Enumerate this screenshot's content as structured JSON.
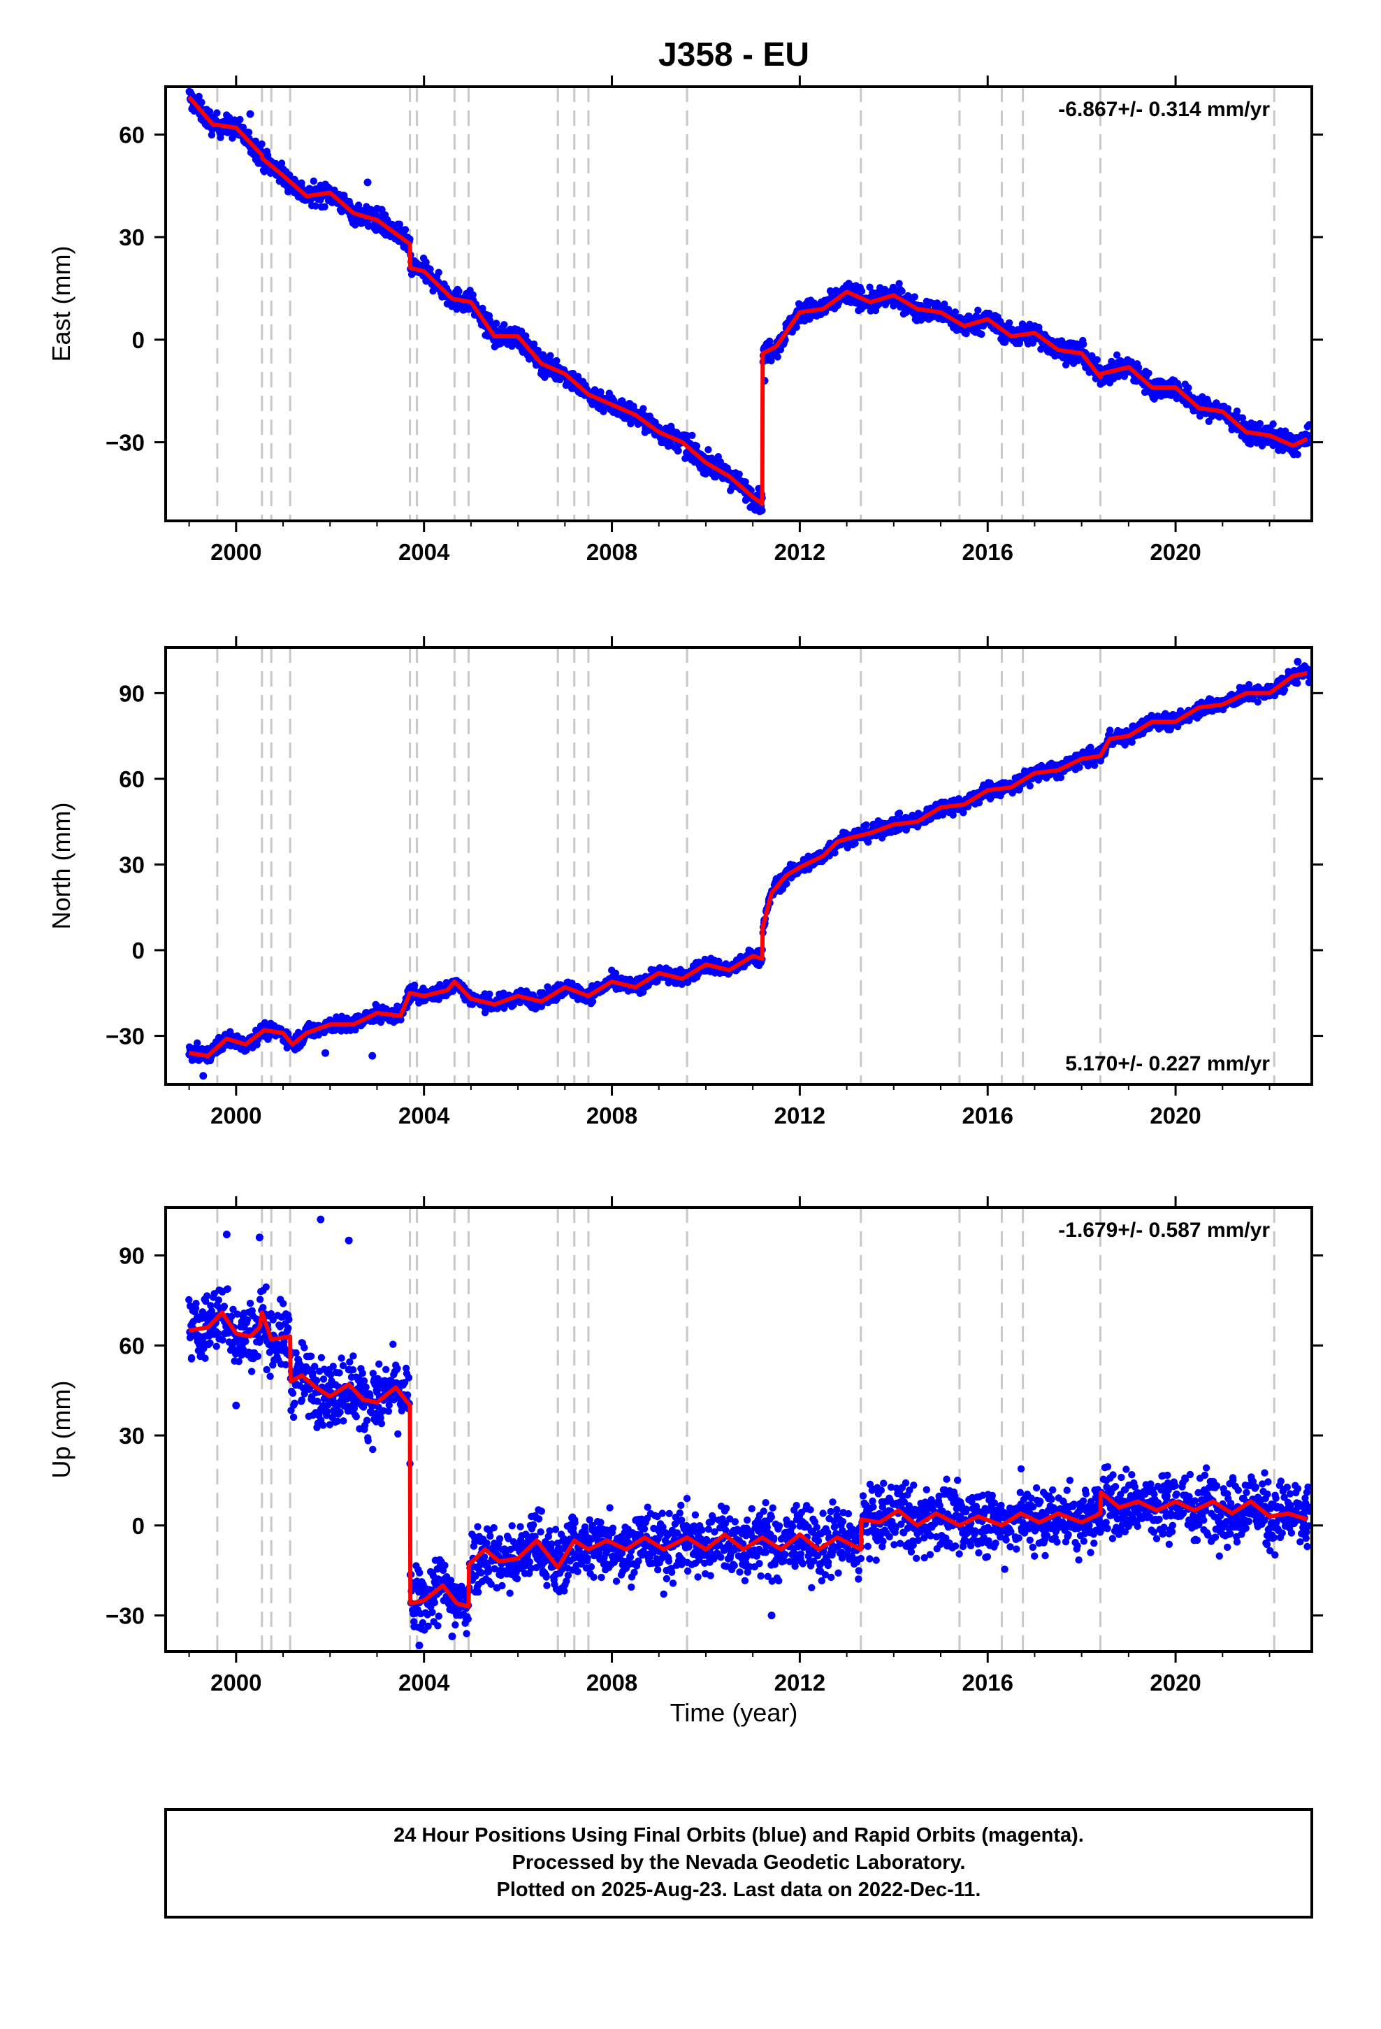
{
  "title": "J358 - EU",
  "xlabel": "Time (year)",
  "caption": [
    "24 Hour Positions Using Final Orbits (blue) and Rapid Orbits (magenta).",
    "Processed by the Nevada Geodetic Laboratory.",
    "Plotted on 2025-Aug-23. Last data on 2022-Dec-11."
  ],
  "colors": {
    "observations": "#0000ff",
    "model": "#ff0000",
    "events": "#c8c8c8",
    "frame": "#000000"
  },
  "chart_data": [
    {
      "type": "scatter",
      "component": "East",
      "ylabel": "East (mm)",
      "rate": "-6.867+/- 0.314 mm/yr",
      "rate_position": "top-right",
      "xlim": [
        1998.5,
        2022.9
      ],
      "ylim": [
        -53,
        74
      ],
      "xticks": [
        2000,
        2004,
        2008,
        2012,
        2016,
        2020
      ],
      "yticks": [
        -30,
        0,
        30,
        60
      ],
      "events": [
        1999.6,
        2000.55,
        2000.75,
        2001.15,
        2003.7,
        2003.85,
        2004.65,
        2004.95,
        2006.85,
        2007.2,
        2007.5,
        2009.6,
        2013.3,
        2015.4,
        2016.3,
        2016.75,
        2018.4,
        2022.1
      ],
      "model": [
        [
          1999.0,
          71
        ],
        [
          1999.5,
          63
        ],
        [
          2000.0,
          62
        ],
        [
          2000.55,
          54
        ],
        [
          2000.56,
          53
        ],
        [
          2001.0,
          48
        ],
        [
          2001.5,
          42
        ],
        [
          2002.0,
          43
        ],
        [
          2002.5,
          37
        ],
        [
          2003.0,
          35
        ],
        [
          2003.5,
          30
        ],
        [
          2003.7,
          28
        ],
        [
          2003.71,
          21
        ],
        [
          2004.0,
          20
        ],
        [
          2004.6,
          12
        ],
        [
          2005.0,
          11
        ],
        [
          2005.5,
          1
        ],
        [
          2006.0,
          1
        ],
        [
          2006.5,
          -7
        ],
        [
          2007.0,
          -10
        ],
        [
          2007.5,
          -16
        ],
        [
          2008.0,
          -19
        ],
        [
          2008.5,
          -22
        ],
        [
          2009.0,
          -27
        ],
        [
          2009.5,
          -30
        ],
        [
          2010.0,
          -36
        ],
        [
          2010.5,
          -40
        ],
        [
          2011.0,
          -46
        ],
        [
          2011.2,
          -48
        ],
        [
          2011.21,
          -4
        ],
        [
          2011.5,
          -2
        ],
        [
          2012.0,
          8
        ],
        [
          2012.5,
          9
        ],
        [
          2013.0,
          14
        ],
        [
          2013.5,
          11
        ],
        [
          2014.0,
          13
        ],
        [
          2014.5,
          9
        ],
        [
          2015.0,
          8
        ],
        [
          2015.5,
          4
        ],
        [
          2016.0,
          6
        ],
        [
          2016.5,
          1
        ],
        [
          2017.0,
          2
        ],
        [
          2017.5,
          -3
        ],
        [
          2018.0,
          -4
        ],
        [
          2018.4,
          -11
        ],
        [
          2018.41,
          -10
        ],
        [
          2019.0,
          -8
        ],
        [
          2019.5,
          -14
        ],
        [
          2020.0,
          -14
        ],
        [
          2020.5,
          -20
        ],
        [
          2021.0,
          -21
        ],
        [
          2021.5,
          -27
        ],
        [
          2022.0,
          -28
        ],
        [
          2022.5,
          -31
        ],
        [
          2022.8,
          -29
        ]
      ],
      "observations": {
        "label": "Final Orbits (blue)",
        "start": 1999.0,
        "end": 2022.85,
        "scatter_mm": 2.2,
        "outliers": [
          [
            2002.8,
            46
          ],
          [
            2003.1,
            38
          ],
          [
            2000.3,
            66
          ],
          [
            2011.25,
            -12
          ]
        ]
      }
    },
    {
      "type": "scatter",
      "component": "North",
      "ylabel": "North (mm)",
      "rate": "5.170+/- 0.227 mm/yr",
      "rate_position": "bottom-right",
      "xlim": [
        1998.5,
        2022.9
      ],
      "ylim": [
        -47,
        106
      ],
      "xticks": [
        2000,
        2004,
        2008,
        2012,
        2016,
        2020
      ],
      "yticks": [
        -30,
        0,
        30,
        60,
        90
      ],
      "events": [
        1999.6,
        2000.55,
        2000.75,
        2001.15,
        2003.7,
        2003.85,
        2004.65,
        2004.95,
        2006.85,
        2007.2,
        2007.5,
        2009.6,
        2013.3,
        2015.4,
        2016.3,
        2016.75,
        2018.4,
        2022.1
      ],
      "model": [
        [
          1999.0,
          -36
        ],
        [
          1999.4,
          -37
        ],
        [
          1999.8,
          -31
        ],
        [
          2000.2,
          -33
        ],
        [
          2000.6,
          -28
        ],
        [
          2001.0,
          -29
        ],
        [
          2001.2,
          -33
        ],
        [
          2001.5,
          -29
        ],
        [
          2002.0,
          -26
        ],
        [
          2002.5,
          -26
        ],
        [
          2003.0,
          -22
        ],
        [
          2003.5,
          -23
        ],
        [
          2003.7,
          -15
        ],
        [
          2004.0,
          -16
        ],
        [
          2004.5,
          -14
        ],
        [
          2004.65,
          -11
        ],
        [
          2005.0,
          -17
        ],
        [
          2005.5,
          -19
        ],
        [
          2006.0,
          -16
        ],
        [
          2006.5,
          -18
        ],
        [
          2007.0,
          -13
        ],
        [
          2007.5,
          -16
        ],
        [
          2008.0,
          -11
        ],
        [
          2008.5,
          -13
        ],
        [
          2009.0,
          -8
        ],
        [
          2009.5,
          -10
        ],
        [
          2010.0,
          -5
        ],
        [
          2010.5,
          -7
        ],
        [
          2011.0,
          -2
        ],
        [
          2011.2,
          -3
        ],
        [
          2011.21,
          8
        ],
        [
          2011.4,
          20
        ],
        [
          2011.7,
          26
        ],
        [
          2012.0,
          29
        ],
        [
          2012.5,
          33
        ],
        [
          2012.8,
          38
        ],
        [
          2013.0,
          39
        ],
        [
          2013.5,
          41
        ],
        [
          2014.0,
          44
        ],
        [
          2014.5,
          45
        ],
        [
          2015.0,
          50
        ],
        [
          2015.5,
          51
        ],
        [
          2016.0,
          56
        ],
        [
          2016.5,
          57
        ],
        [
          2017.0,
          62
        ],
        [
          2017.5,
          63
        ],
        [
          2018.0,
          67
        ],
        [
          2018.4,
          68
        ],
        [
          2018.6,
          74
        ],
        [
          2019.0,
          75
        ],
        [
          2019.5,
          80
        ],
        [
          2020.0,
          80
        ],
        [
          2020.5,
          85
        ],
        [
          2021.0,
          86
        ],
        [
          2021.5,
          90
        ],
        [
          2022.0,
          90
        ],
        [
          2022.5,
          96
        ],
        [
          2022.8,
          97
        ]
      ],
      "observations": {
        "label": "Final Orbits (blue)",
        "start": 1999.0,
        "end": 2022.85,
        "scatter_mm": 1.9,
        "outliers": [
          [
            1999.3,
            -44
          ],
          [
            2002.9,
            -37
          ],
          [
            2001.9,
            -36
          ],
          [
            2022.6,
            101
          ]
        ]
      }
    },
    {
      "type": "scatter",
      "component": "Up",
      "ylabel": "Up (mm)",
      "rate": "-1.679+/- 0.587 mm/yr",
      "rate_position": "top-right",
      "xlim": [
        1998.5,
        2022.9
      ],
      "ylim": [
        -42,
        106
      ],
      "xticks": [
        2000,
        2004,
        2008,
        2012,
        2016,
        2020
      ],
      "yticks": [
        -30,
        0,
        30,
        60,
        90
      ],
      "events": [
        1999.6,
        2000.55,
        2000.75,
        2001.15,
        2003.7,
        2003.85,
        2004.65,
        2004.95,
        2006.85,
        2007.2,
        2007.5,
        2009.6,
        2013.3,
        2015.4,
        2016.3,
        2016.75,
        2018.4,
        2022.1
      ],
      "model": [
        [
          1999.0,
          65
        ],
        [
          1999.4,
          66
        ],
        [
          1999.7,
          71
        ],
        [
          2000.0,
          64
        ],
        [
          2000.3,
          63
        ],
        [
          2000.5,
          66
        ],
        [
          2000.55,
          71
        ],
        [
          2000.75,
          62
        ],
        [
          2001.15,
          63
        ],
        [
          2001.16,
          48
        ],
        [
          2001.4,
          50
        ],
        [
          2001.7,
          46
        ],
        [
          2002.0,
          43
        ],
        [
          2002.4,
          47
        ],
        [
          2002.7,
          42
        ],
        [
          2003.0,
          41
        ],
        [
          2003.4,
          46
        ],
        [
          2003.7,
          40
        ],
        [
          2003.71,
          -26
        ],
        [
          2004.0,
          -25
        ],
        [
          2004.4,
          -20
        ],
        [
          2004.7,
          -26
        ],
        [
          2004.95,
          -27
        ],
        [
          2004.96,
          -13
        ],
        [
          2005.3,
          -8
        ],
        [
          2005.6,
          -12
        ],
        [
          2006.0,
          -11
        ],
        [
          2006.4,
          -5
        ],
        [
          2006.85,
          -14
        ],
        [
          2007.2,
          -5
        ],
        [
          2007.5,
          -8
        ],
        [
          2007.9,
          -5
        ],
        [
          2008.3,
          -8
        ],
        [
          2008.7,
          -4
        ],
        [
          2009.1,
          -8
        ],
        [
          2009.6,
          -4
        ],
        [
          2010.0,
          -8
        ],
        [
          2010.4,
          -3
        ],
        [
          2010.8,
          -8
        ],
        [
          2011.2,
          -4
        ],
        [
          2011.6,
          -8
        ],
        [
          2012.0,
          -3
        ],
        [
          2012.4,
          -8
        ],
        [
          2012.8,
          -4
        ],
        [
          2013.3,
          -8
        ],
        [
          2013.31,
          2
        ],
        [
          2013.7,
          1
        ],
        [
          2014.1,
          5
        ],
        [
          2014.5,
          0
        ],
        [
          2014.9,
          4
        ],
        [
          2015.4,
          0
        ],
        [
          2015.8,
          3
        ],
        [
          2016.3,
          0
        ],
        [
          2016.7,
          4
        ],
        [
          2017.1,
          1
        ],
        [
          2017.5,
          4
        ],
        [
          2018.0,
          1
        ],
        [
          2018.4,
          4
        ],
        [
          2018.41,
          11
        ],
        [
          2018.8,
          6
        ],
        [
          2019.2,
          8
        ],
        [
          2019.6,
          5
        ],
        [
          2020.0,
          8
        ],
        [
          2020.4,
          5
        ],
        [
          2020.8,
          8
        ],
        [
          2021.2,
          4
        ],
        [
          2021.6,
          8
        ],
        [
          2022.0,
          3
        ],
        [
          2022.4,
          4
        ],
        [
          2022.8,
          2
        ]
      ],
      "observations": {
        "label": "Final Orbits (blue)",
        "start": 1999.0,
        "end": 2022.85,
        "scatter_mm": 8.0,
        "outliers": [
          [
            2001.8,
            102
          ],
          [
            1999.8,
            97
          ],
          [
            2000.5,
            96
          ],
          [
            2002.4,
            95
          ],
          [
            2000.0,
            40
          ],
          [
            2002.0,
            42
          ],
          [
            2003.9,
            -40
          ],
          [
            2004.6,
            -37
          ],
          [
            2011.4,
            -30
          ]
        ]
      }
    }
  ]
}
